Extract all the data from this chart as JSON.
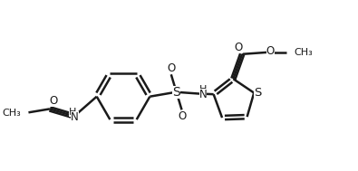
{
  "bg_color": "#ffffff",
  "line_color": "#1a1a1a",
  "bond_width": 1.8,
  "font_size": 8.5,
  "figsize": [
    3.95,
    1.89
  ],
  "dpi": 100,
  "xlim": [
    0,
    3.95
  ],
  "ylim": [
    0,
    1.89
  ]
}
